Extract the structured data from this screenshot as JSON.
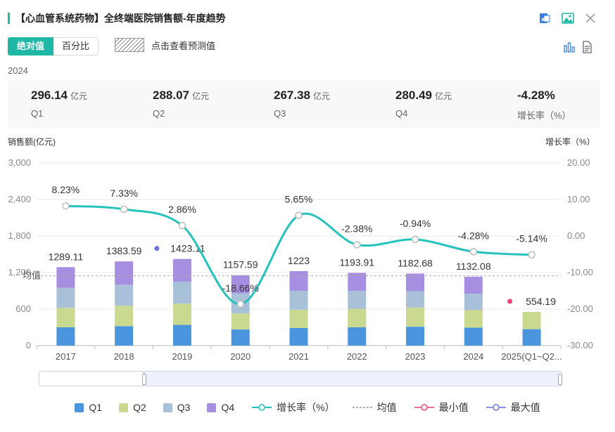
{
  "header": {
    "title": "【心血管系统药物】全终端医院销售额-年度趋势",
    "icons": [
      "excel-export-icon",
      "image-export-icon",
      "close-icon"
    ]
  },
  "toggle": {
    "absolute": "绝对值",
    "percent": "百分比"
  },
  "forecast_label": "点击查看预测值",
  "view_icons": [
    "bar-chart-icon",
    "document-icon"
  ],
  "summary": {
    "year": "2024",
    "items": [
      {
        "value": "296.14",
        "unit": "亿元",
        "label": "Q1"
      },
      {
        "value": "288.07",
        "unit": "亿元",
        "label": "Q2"
      },
      {
        "value": "267.38",
        "unit": "亿元",
        "label": "Q3"
      },
      {
        "value": "280.49",
        "unit": "亿元",
        "label": "Q4"
      },
      {
        "value": "-4.28%",
        "unit": "",
        "label": "增长率（%）"
      }
    ]
  },
  "colors": {
    "accent": "#1fb8a6",
    "q1": "#4a95de",
    "q2": "#c9d98f",
    "q3": "#a9c0d9",
    "q4": "#a68ee0",
    "growth": "#26c3bd",
    "min": "#f0417c",
    "max": "#6b72e0"
  },
  "chart_data": {
    "type": "bar",
    "stacked": true,
    "ylabel": "销售额(亿元)",
    "y2label": "增长率（%）",
    "ylim": [
      0,
      3000
    ],
    "y2lim": [
      -30,
      20
    ],
    "yticks": [
      "0",
      "600",
      "1,200",
      "1,800",
      "2,400",
      "3,000"
    ],
    "y2ticks": [
      "-30.00",
      "-20.00",
      "-10.00",
      "0.00",
      "10.00",
      "20.00"
    ],
    "categories": [
      "2017",
      "2018",
      "2019",
      "2020",
      "2021",
      "2022",
      "2023",
      "2024",
      "2025(Q1~Q2..."
    ],
    "series": [
      {
        "name": "Q1",
        "values": [
          300,
          320,
          340,
          265,
          290,
          300,
          310,
          296.14,
          270
        ]
      },
      {
        "name": "Q2",
        "values": [
          320,
          335,
          350,
          265,
          300,
          305,
          315,
          288.07,
          284.19
        ]
      },
      {
        "name": "Q3",
        "values": [
          330,
          345,
          360,
          330,
          310,
          295,
          270,
          267.38,
          0
        ]
      },
      {
        "name": "Q4",
        "values": [
          339.11,
          383.59,
          373.11,
          297.59,
          323,
          293.91,
          287.68,
          280.49,
          0
        ]
      }
    ],
    "totals": [
      "1289.11",
      "1383.59",
      "1423.11",
      "1157.59",
      "1223",
      "1193.91",
      "1182.68",
      "1132.08",
      "554.19"
    ],
    "growth": {
      "name": "增长率（%）",
      "values": [
        8.23,
        7.33,
        2.86,
        -18.66,
        5.65,
        -2.38,
        -0.94,
        -4.28,
        -5.14
      ],
      "labels": [
        "8.23%",
        "7.33%",
        "2.86%",
        "-18.66%",
        "5.65%",
        "-2.38%",
        "-0.94%",
        "-4.28%",
        "-5.14%"
      ]
    },
    "average": {
      "label": "均值",
      "value": 1148
    },
    "max_index": 2,
    "min_index": 8
  },
  "legend": [
    "Q1",
    "Q2",
    "Q3",
    "Q4",
    "增长率（%）",
    "均值",
    "最小值",
    "最大值"
  ]
}
